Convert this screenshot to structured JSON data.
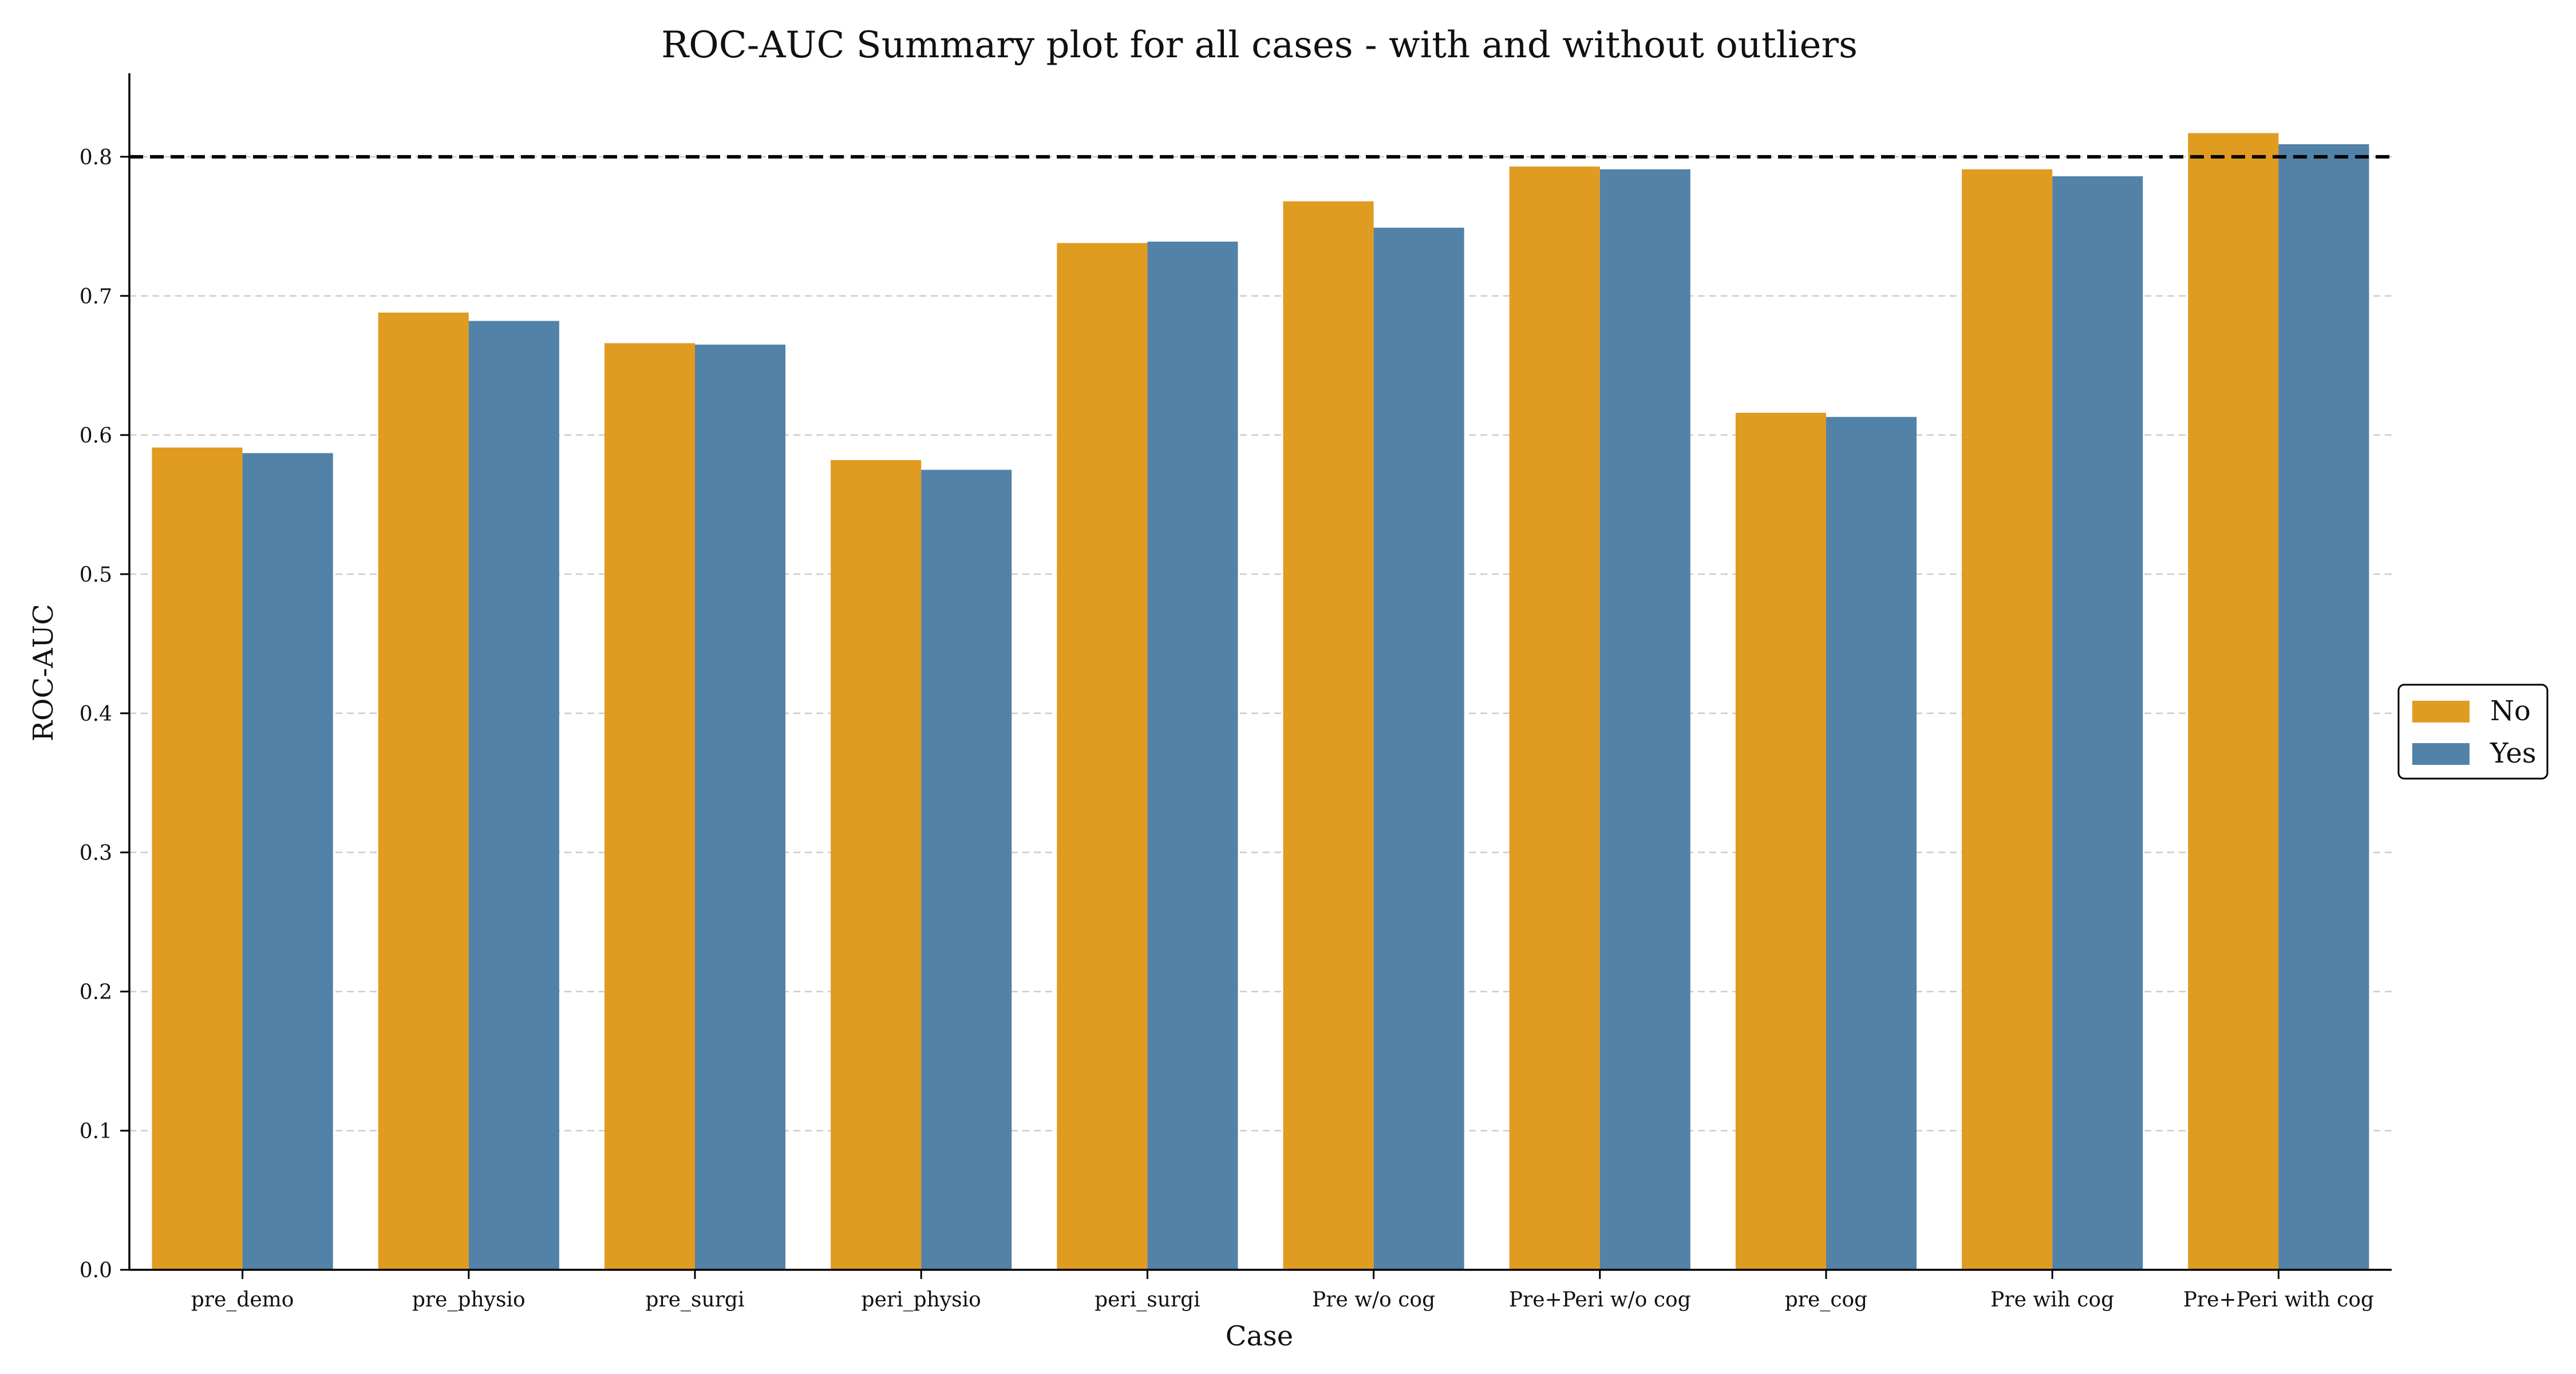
{
  "chart_data": {
    "type": "bar",
    "title": "ROC-AUC Summary plot for all cases - with and without outliers",
    "xlabel": "Case",
    "ylabel": "ROC-AUC",
    "categories": [
      "pre_demo",
      "pre_physio",
      "pre_surgi",
      "peri_physio",
      "peri_surgi",
      "Pre w/o cog",
      "Pre+Peri w/o cog",
      "pre_cog",
      "Pre wih cog",
      "Pre+Peri with cog"
    ],
    "series": [
      {
        "name": "No",
        "color": "#E09B21",
        "values": [
          0.591,
          0.688,
          0.666,
          0.582,
          0.738,
          0.768,
          0.793,
          0.616,
          0.791,
          0.817
        ]
      },
      {
        "name": "Yes",
        "color": "#5282A7",
        "values": [
          0.587,
          0.682,
          0.665,
          0.575,
          0.739,
          0.749,
          0.791,
          0.613,
          0.786,
          0.809
        ]
      }
    ],
    "ylim": [
      0,
      0.86
    ],
    "yticks": [
      "0.0",
      "0.1",
      "0.2",
      "0.3",
      "0.4",
      "0.5",
      "0.6",
      "0.7",
      "0.8"
    ],
    "reference_line": {
      "y": 0.8,
      "style": "dashed",
      "color": "#000000"
    },
    "grid": "horizontal dashed",
    "legend": {
      "placement": "center-right",
      "entries": [
        "No",
        "Yes"
      ]
    }
  }
}
